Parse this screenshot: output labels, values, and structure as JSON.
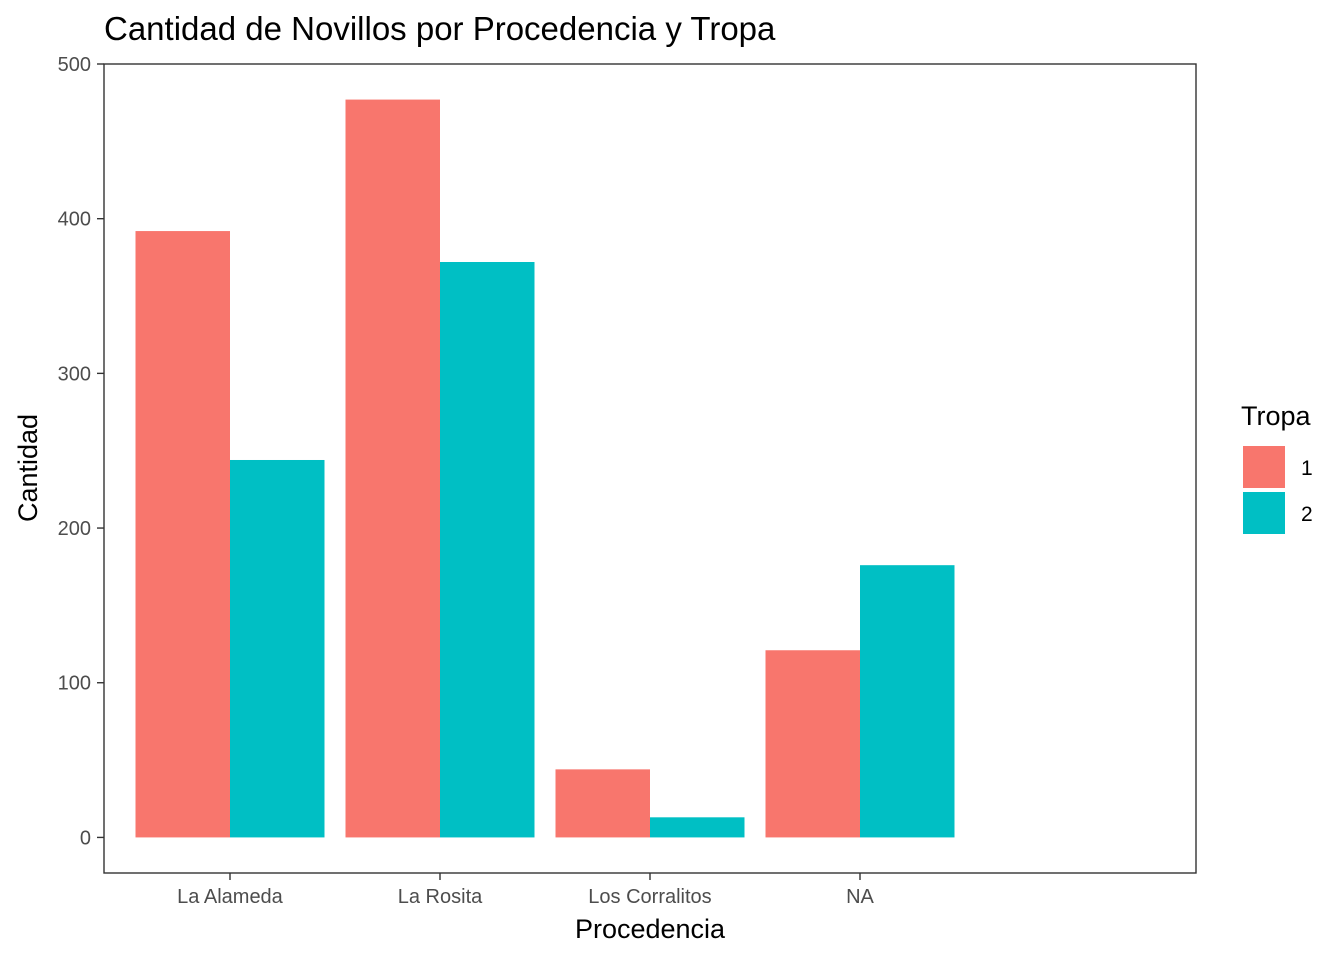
{
  "chart_data": {
    "type": "bar",
    "title": "Cantidad de Novillos por Procedencia y Tropa",
    "xlabel": "Procedencia",
    "ylabel": "Cantidad",
    "categories": [
      "La Alameda",
      "La Rosita",
      "Los Corralitos",
      "NA"
    ],
    "series": [
      {
        "name": "1",
        "color": "#F8766D",
        "values": [
          392,
          477,
          44,
          121
        ]
      },
      {
        "name": "2",
        "color": "#00BFC4",
        "values": [
          244,
          372,
          13,
          176
        ]
      }
    ],
    "ylim": [
      -23,
      500
    ],
    "yticks": [
      0,
      100,
      200,
      300,
      400,
      500
    ],
    "grid": false,
    "legend": {
      "title": "Tropa",
      "position": "right"
    }
  }
}
